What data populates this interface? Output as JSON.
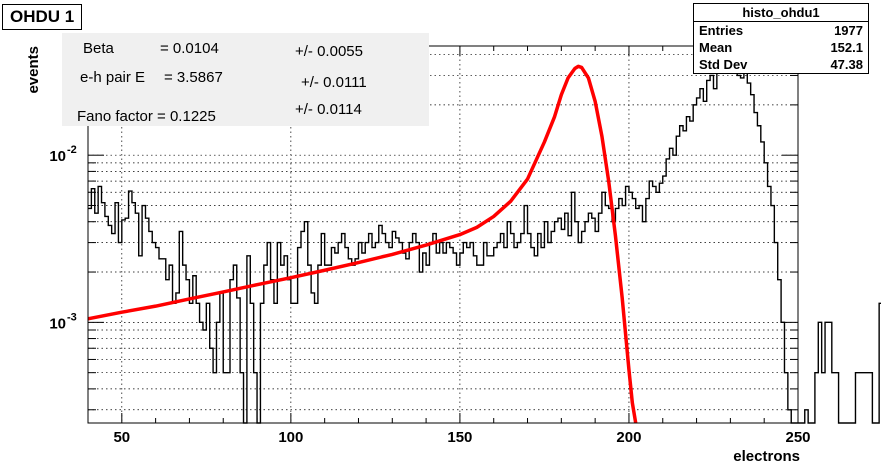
{
  "pad_title": "OHDU 1",
  "stats_box": {
    "title": "histo_ohdu1",
    "rows": [
      {
        "label": "Entries",
        "value": "1977"
      },
      {
        "label": "Mean",
        "value": "152.1"
      },
      {
        "label": "Std Dev",
        "value": "47.38"
      }
    ]
  },
  "fit_box": {
    "beta_label": "Beta",
    "beta_value": "= 0.0104",
    "beta_err": "+/- 0.0055",
    "eh_label": "e-h pair E",
    "eh_value": "= 3.5867",
    "eh_err": "+/- 0.0111",
    "fano_label": "Fano factor = 0.1225",
    "fano_err": "+/- 0.0114"
  },
  "colors": {
    "histogram": "#000000",
    "fit": "#ff0000",
    "grid": "#000000",
    "fitbox_bg": "#f0f0f0"
  },
  "chart_data": {
    "type": "histogram",
    "xlabel": "electrons",
    "ylabel": "events",
    "xlim": [
      40,
      250
    ],
    "ylim": [
      0.00025,
      0.045
    ],
    "yscale": "log",
    "grid": true,
    "x_ticks": [
      50,
      100,
      150,
      200,
      250
    ],
    "y_ticks": [
      {
        "value": 0.001,
        "label": "10",
        "exp": "-3"
      },
      {
        "value": 0.01,
        "label": "10",
        "exp": "-2"
      }
    ],
    "bin_start": 40,
    "bin_width": 1,
    "histogram_values": [
      0.0048,
      0.0063,
      0.0045,
      0.0065,
      0.0052,
      0.0043,
      0.0038,
      0.0034,
      0.0052,
      0.003,
      0.0041,
      0.0042,
      0.0061,
      0.0052,
      0.0045,
      0.0025,
      0.005,
      0.0042,
      0.0035,
      0.003,
      0.0028,
      0.0024,
      0.0024,
      0.0018,
      0.0022,
      0.0013,
      0.0015,
      0.0035,
      0.0022,
      0.0018,
      0.0013,
      0.0019,
      0.0013,
      0.001,
      0.0009,
      0.0013,
      0.0007,
      0.0005,
      0.001,
      0.0015,
      0.0005,
      0.0005,
      0.0018,
      0.0022,
      0.0014,
      0.0005,
      0.00025,
      0.0025,
      0.0013,
      0.0005,
      0.00025,
      0.0013,
      0.0022,
      0.003,
      0.0018,
      0.0013,
      0.003,
      0.0022,
      0.0025,
      0.0018,
      0.0013,
      0.0013,
      0.0028,
      0.0035,
      0.004,
      0.0022,
      0.0015,
      0.0013,
      0.0022,
      0.0034,
      0.0022,
      0.0022,
      0.0028,
      0.0026,
      0.003,
      0.0034,
      0.0028,
      0.0024,
      0.0022,
      0.0024,
      0.003,
      0.0026,
      0.003,
      0.0034,
      0.0028,
      0.003,
      0.0038,
      0.0034,
      0.003,
      0.0028,
      0.0035,
      0.0032,
      0.003,
      0.0026,
      0.0024,
      0.003,
      0.0034,
      0.003,
      0.002,
      0.0026,
      0.0022,
      0.003,
      0.0034,
      0.0026,
      0.003,
      0.0026,
      0.003,
      0.0028,
      0.0026,
      0.0022,
      0.0026,
      0.003,
      0.0028,
      0.003,
      0.0025,
      0.0022,
      0.0022,
      0.003,
      0.0025,
      0.0025,
      0.0028,
      0.003,
      0.0034,
      0.0028,
      0.004,
      0.0034,
      0.0028,
      0.003,
      0.0034,
      0.005,
      0.0034,
      0.0028,
      0.0025,
      0.0034,
      0.0028,
      0.004,
      0.003,
      0.0035,
      0.004,
      0.0042,
      0.0036,
      0.0045,
      0.0033,
      0.006,
      0.004,
      0.003,
      0.0035,
      0.004,
      0.0045,
      0.0042,
      0.0035,
      0.0045,
      0.006,
      0.005,
      0.0048,
      0.004,
      0.0048,
      0.0055,
      0.005,
      0.0065,
      0.006,
      0.0055,
      0.0048,
      0.005,
      0.004,
      0.0055,
      0.007,
      0.0065,
      0.006,
      0.0068,
      0.0075,
      0.0095,
      0.011,
      0.01,
      0.013,
      0.015,
      0.014,
      0.017,
      0.016,
      0.02,
      0.022,
      0.025,
      0.021,
      0.028,
      0.03,
      0.025,
      0.033,
      0.031,
      0.035,
      0.034,
      0.032,
      0.035,
      0.03,
      0.029,
      0.031,
      0.027,
      0.023,
      0.018,
      0.015,
      0.012,
      0.009,
      0.0065,
      0.005,
      0.003,
      0.0018,
      0.001,
      0.0005,
      0.0003,
      0.00025,
      0.00025,
      0.00025,
      0.00025,
      0.0003,
      0.00025,
      0.00025,
      0.0005,
      0.001,
      0.0005,
      0.001,
      0.001,
      0.0005,
      0.0005,
      0.00025,
      0.00025,
      0.00025,
      0.00025,
      0.00025,
      0.0005,
      0.0005,
      0.0005,
      0.0005,
      0.0005,
      0.00025,
      0.00025,
      0.0013,
      0.001,
      0.001,
      0.0005,
      0.0005,
      0.0005,
      0.001,
      0.00025,
      0.0005,
      0.0005,
      0.0005,
      0.00025,
      0.00025,
      0.001,
      0.00025,
      0.0005,
      0.00025,
      0.001,
      0.001,
      0.00025,
      0.0005,
      0.001,
      0.00025,
      0.0005,
      0.0005,
      0.001,
      0.00025,
      0.0005,
      0.0005
    ],
    "fit_curve": {
      "x": [
        40,
        50,
        60,
        70,
        80,
        90,
        100,
        110,
        120,
        130,
        140,
        150,
        155,
        160,
        165,
        170,
        175,
        178,
        180,
        182,
        184,
        185,
        186,
        188,
        190,
        192,
        194,
        196,
        198,
        200,
        201,
        202
      ],
      "y": [
        0.00105,
        0.00115,
        0.00125,
        0.00138,
        0.00152,
        0.00168,
        0.00185,
        0.00205,
        0.00228,
        0.00255,
        0.0029,
        0.00335,
        0.0037,
        0.0043,
        0.0053,
        0.0072,
        0.012,
        0.017,
        0.023,
        0.029,
        0.033,
        0.034,
        0.0335,
        0.029,
        0.021,
        0.013,
        0.007,
        0.0033,
        0.0014,
        0.00052,
        0.00033,
        0.00025
      ]
    }
  }
}
